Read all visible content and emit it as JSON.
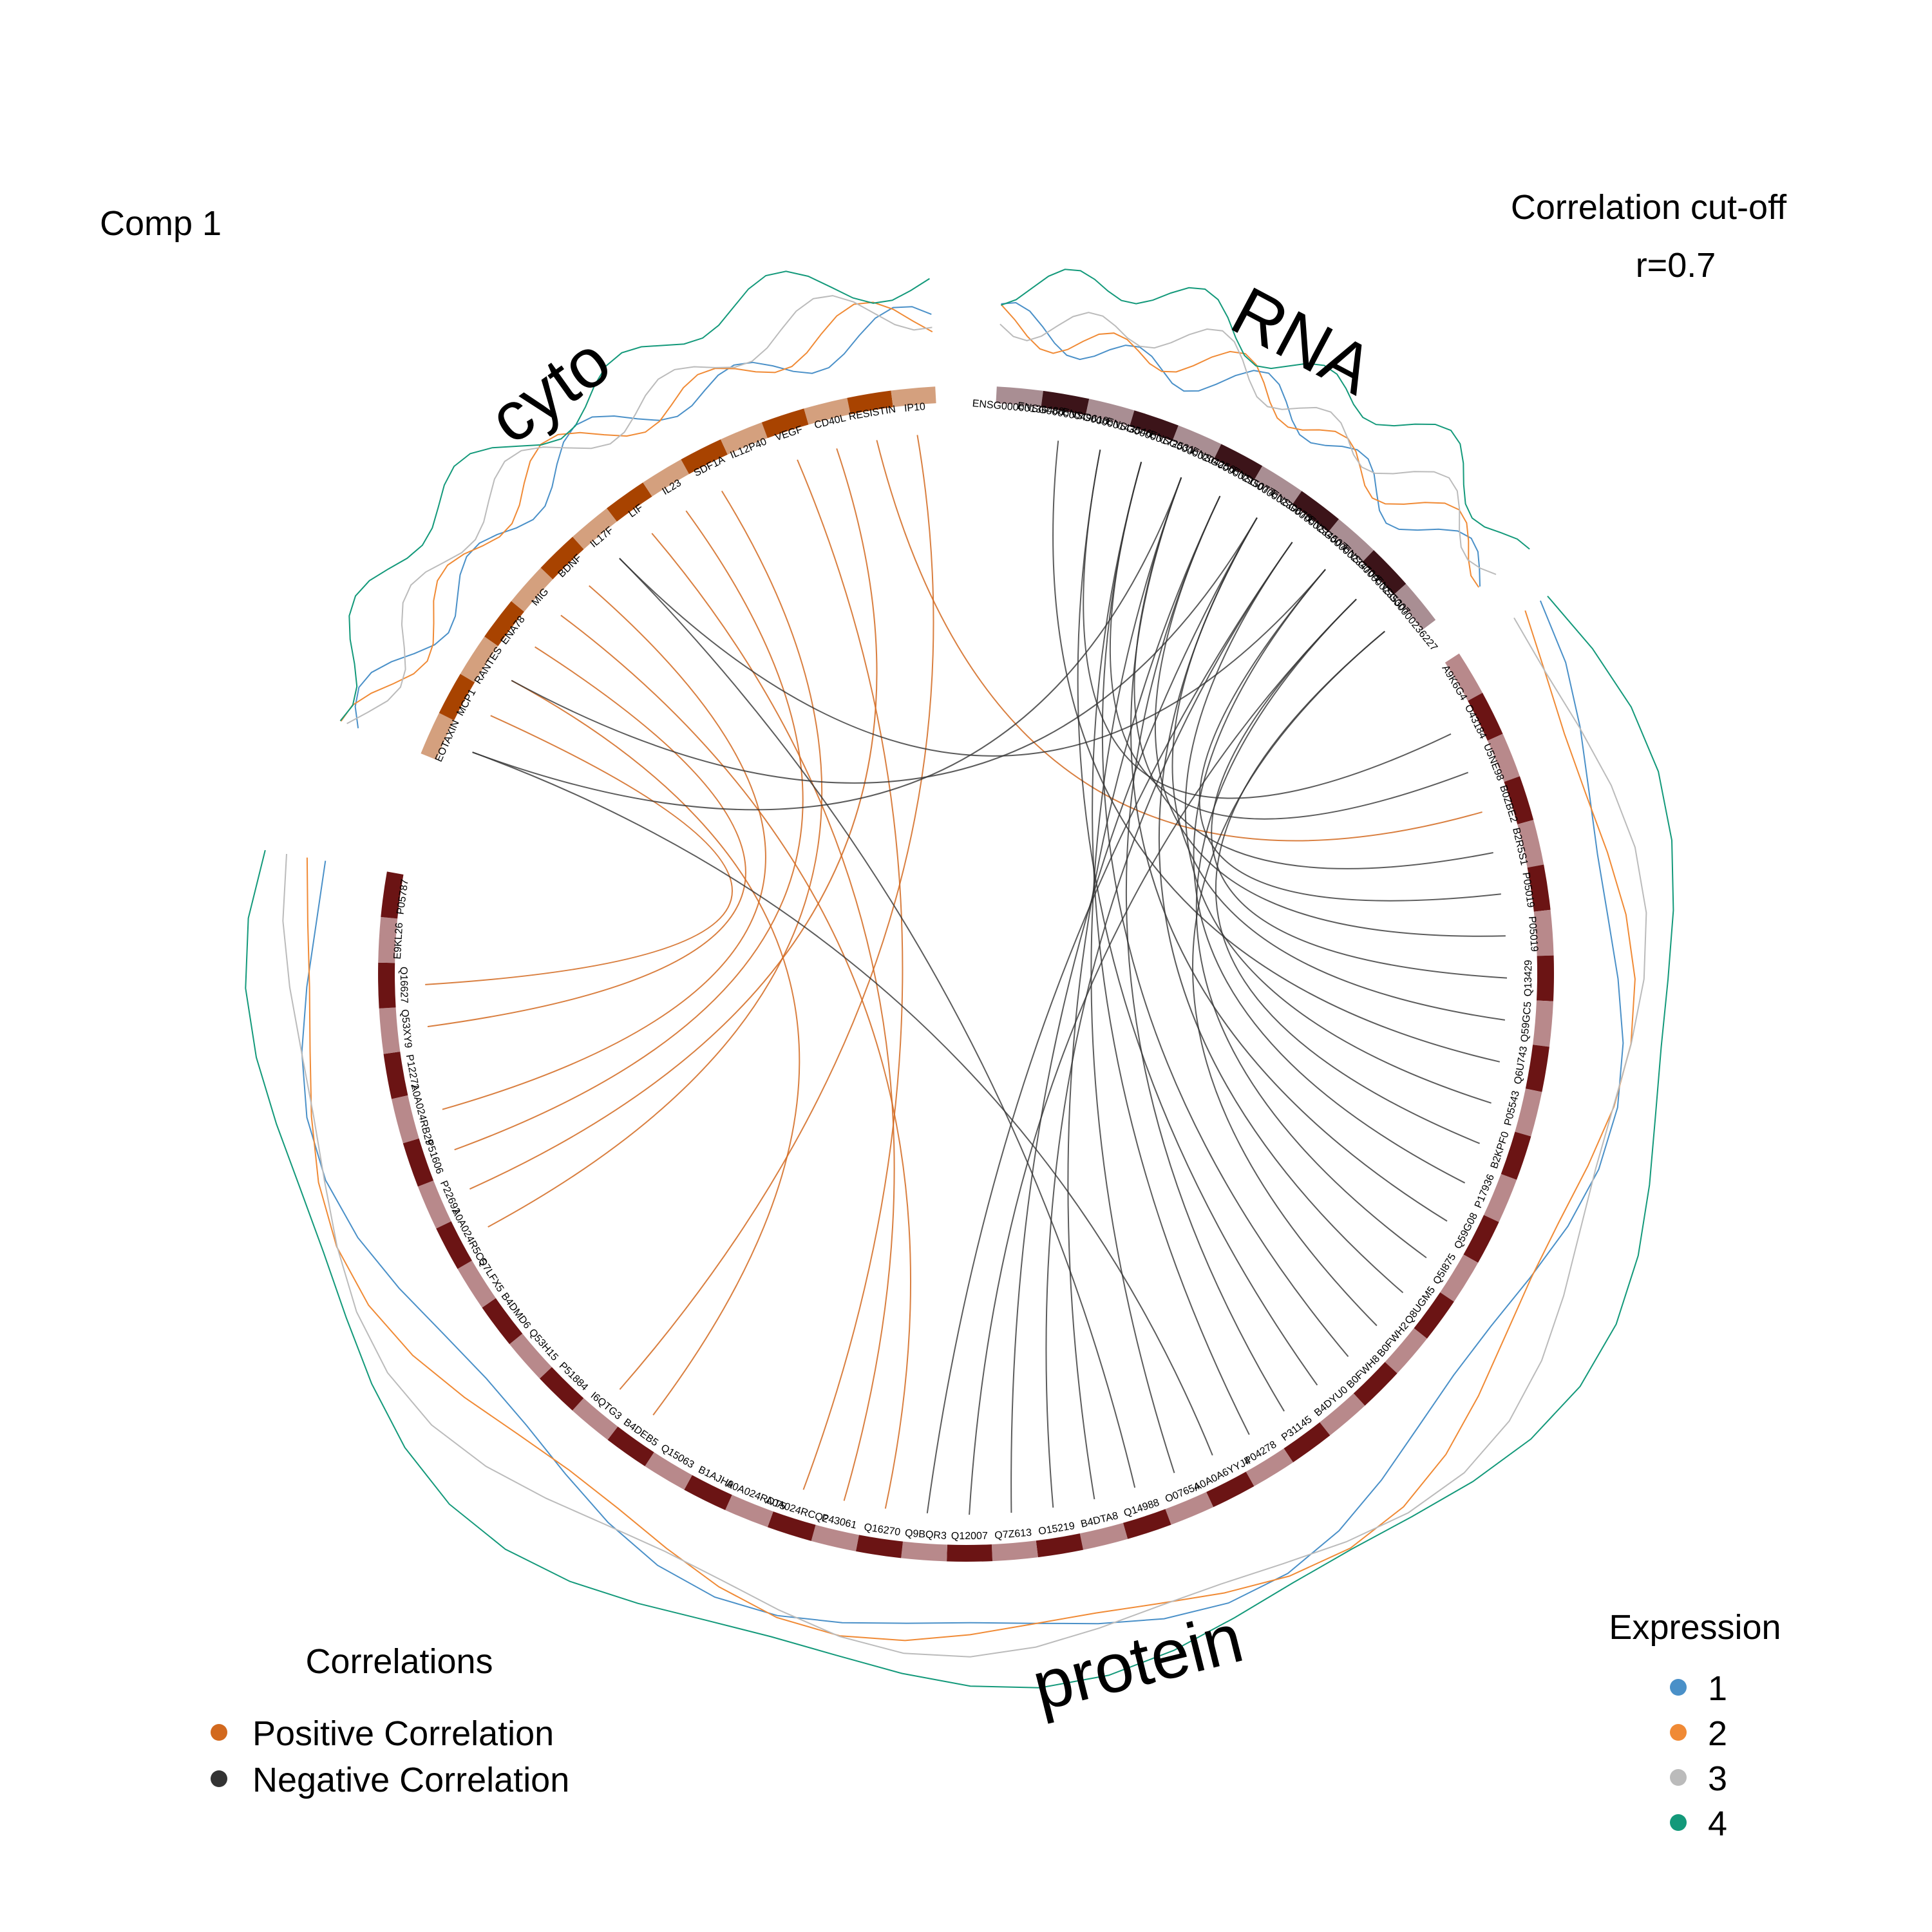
{
  "chart_data": {
    "type": "circos",
    "title": "Comp 1",
    "cutoff_title": "Correlation cut-off",
    "cutoff_value": "r=0.7",
    "blocks": [
      {
        "name": "cyto",
        "color": "#A84300",
        "light": "#D4A07E",
        "labels": [
          "EOTAXIN",
          "MCP1",
          "RANTES",
          "ENA78",
          "MIG",
          "BDNF",
          "IL17F",
          "LIF",
          "IL23",
          "SDF1A",
          "IL12P40",
          "VEGF",
          "CD40L",
          "RESISTIN",
          "IP10"
        ]
      },
      {
        "name": "RNA",
        "color": "#3C1419",
        "light": "#A98E93",
        "labels": [
          "ENSG00000136488",
          "ENSG00000049618",
          "ENSG00000143546",
          "ENSG00000172531",
          "ENSG00000204256",
          "ENSG00000215077",
          "ENSG00000230678",
          "ENSG00000234507",
          "ENSG00000234704",
          "ENSG00000235307",
          "ENSG00000236227"
        ]
      },
      {
        "name": "protein",
        "color": "#6B1414",
        "light": "#B8898B",
        "labels": [
          "A9K6G4",
          "O43184",
          "U5NE98",
          "B0ZBE2",
          "B2R5S1",
          "P05019",
          "P05019",
          "Q13429",
          "Q59GC5",
          "Q6U743",
          "P05543",
          "B2KPF0",
          "P17936",
          "Q59G08",
          "Q5I875",
          "Q8UGM5",
          "B0FWH2",
          "B0FWH8",
          "B4DYU0",
          "P31145",
          "P04278",
          "A0A0A6YYJ4",
          "O07654",
          "Q14988",
          "B4DTA8",
          "O15219",
          "Q7Z613",
          "Q12007",
          "Q9BQR3",
          "Q16270",
          "P43061",
          "A0A024RCQ2",
          "A0A024RDT5",
          "B1AJH9",
          "Q15063",
          "B4DEB5",
          "I6QTG3",
          "P51884",
          "Q53H15",
          "B4DMD6",
          "Q7LFX5",
          "A0A024R5C5",
          "P22692",
          "P51606",
          "A0A024RB29",
          "P12272",
          "Q53XY9",
          "Q16627",
          "E9KL26",
          "P05787"
        ]
      }
    ],
    "links": {
      "positive": [
        [
          "cyto",
          1,
          "protein",
          47
        ],
        [
          "cyto",
          3,
          "protein",
          46
        ],
        [
          "cyto",
          5,
          "protein",
          44
        ],
        [
          "cyto",
          8,
          "protein",
          43
        ],
        [
          "cyto",
          12,
          "protein",
          42
        ],
        [
          "cyto",
          9,
          "protein",
          41
        ],
        [
          "cyto",
          11,
          "protein",
          31
        ],
        [
          "cyto",
          7,
          "protein",
          30
        ],
        [
          "cyto",
          4,
          "protein",
          29
        ],
        [
          "cyto",
          14,
          "protein",
          36
        ],
        [
          "cyto",
          2,
          "protein",
          35
        ],
        [
          "cyto",
          13,
          "protein",
          3
        ]
      ],
      "negative": [
        [
          "RNA",
          2,
          "protein",
          1
        ],
        [
          "RNA",
          3,
          "protein",
          2
        ],
        [
          "RNA",
          4,
          "protein",
          4
        ],
        [
          "RNA",
          5,
          "protein",
          6
        ],
        [
          "RNA",
          6,
          "protein",
          8
        ],
        [
          "RNA",
          7,
          "protein",
          10
        ],
        [
          "RNA",
          8,
          "protein",
          12
        ],
        [
          "RNA",
          9,
          "protein",
          14
        ],
        [
          "RNA",
          10,
          "protein",
          16
        ],
        [
          "RNA",
          2,
          "protein",
          18
        ],
        [
          "RNA",
          3,
          "protein",
          20
        ],
        [
          "RNA",
          4,
          "protein",
          22
        ],
        [
          "RNA",
          5,
          "protein",
          24
        ],
        [
          "RNA",
          6,
          "protein",
          26
        ],
        [
          "RNA",
          7,
          "protein",
          28
        ],
        [
          "RNA",
          8,
          "protein",
          5
        ],
        [
          "RNA",
          9,
          "protein",
          7
        ],
        [
          "RNA",
          1,
          "protein",
          9
        ],
        [
          "RNA",
          10,
          "protein",
          11
        ],
        [
          "RNA",
          4,
          "protein",
          13
        ],
        [
          "RNA",
          6,
          "protein",
          15
        ],
        [
          "RNA",
          3,
          "protein",
          17
        ],
        [
          "RNA",
          5,
          "protein",
          19
        ],
        [
          "cyto",
          0,
          "RNA",
          4
        ],
        [
          "cyto",
          2,
          "RNA",
          6
        ],
        [
          "cyto",
          6,
          "RNA",
          8
        ],
        [
          "cyto",
          0,
          "protein",
          21
        ],
        [
          "cyto",
          6,
          "protein",
          23
        ],
        [
          "RNA",
          7,
          "protein",
          25
        ],
        [
          "RNA",
          9,
          "protein",
          27
        ]
      ]
    },
    "legend_correlations": {
      "title": "Correlations",
      "items": [
        {
          "label": "Positive Correlation",
          "color": "#D2691E"
        },
        {
          "label": "Negative Correlation",
          "color": "#333333"
        }
      ]
    },
    "legend_expression": {
      "title": "Expression",
      "items": [
        {
          "label": "1",
          "color": "#4A90C8"
        },
        {
          "label": "2",
          "color": "#F08A35"
        },
        {
          "label": "3",
          "color": "#BBBBBB"
        },
        {
          "label": "4",
          "color": "#13997A"
        }
      ]
    }
  }
}
